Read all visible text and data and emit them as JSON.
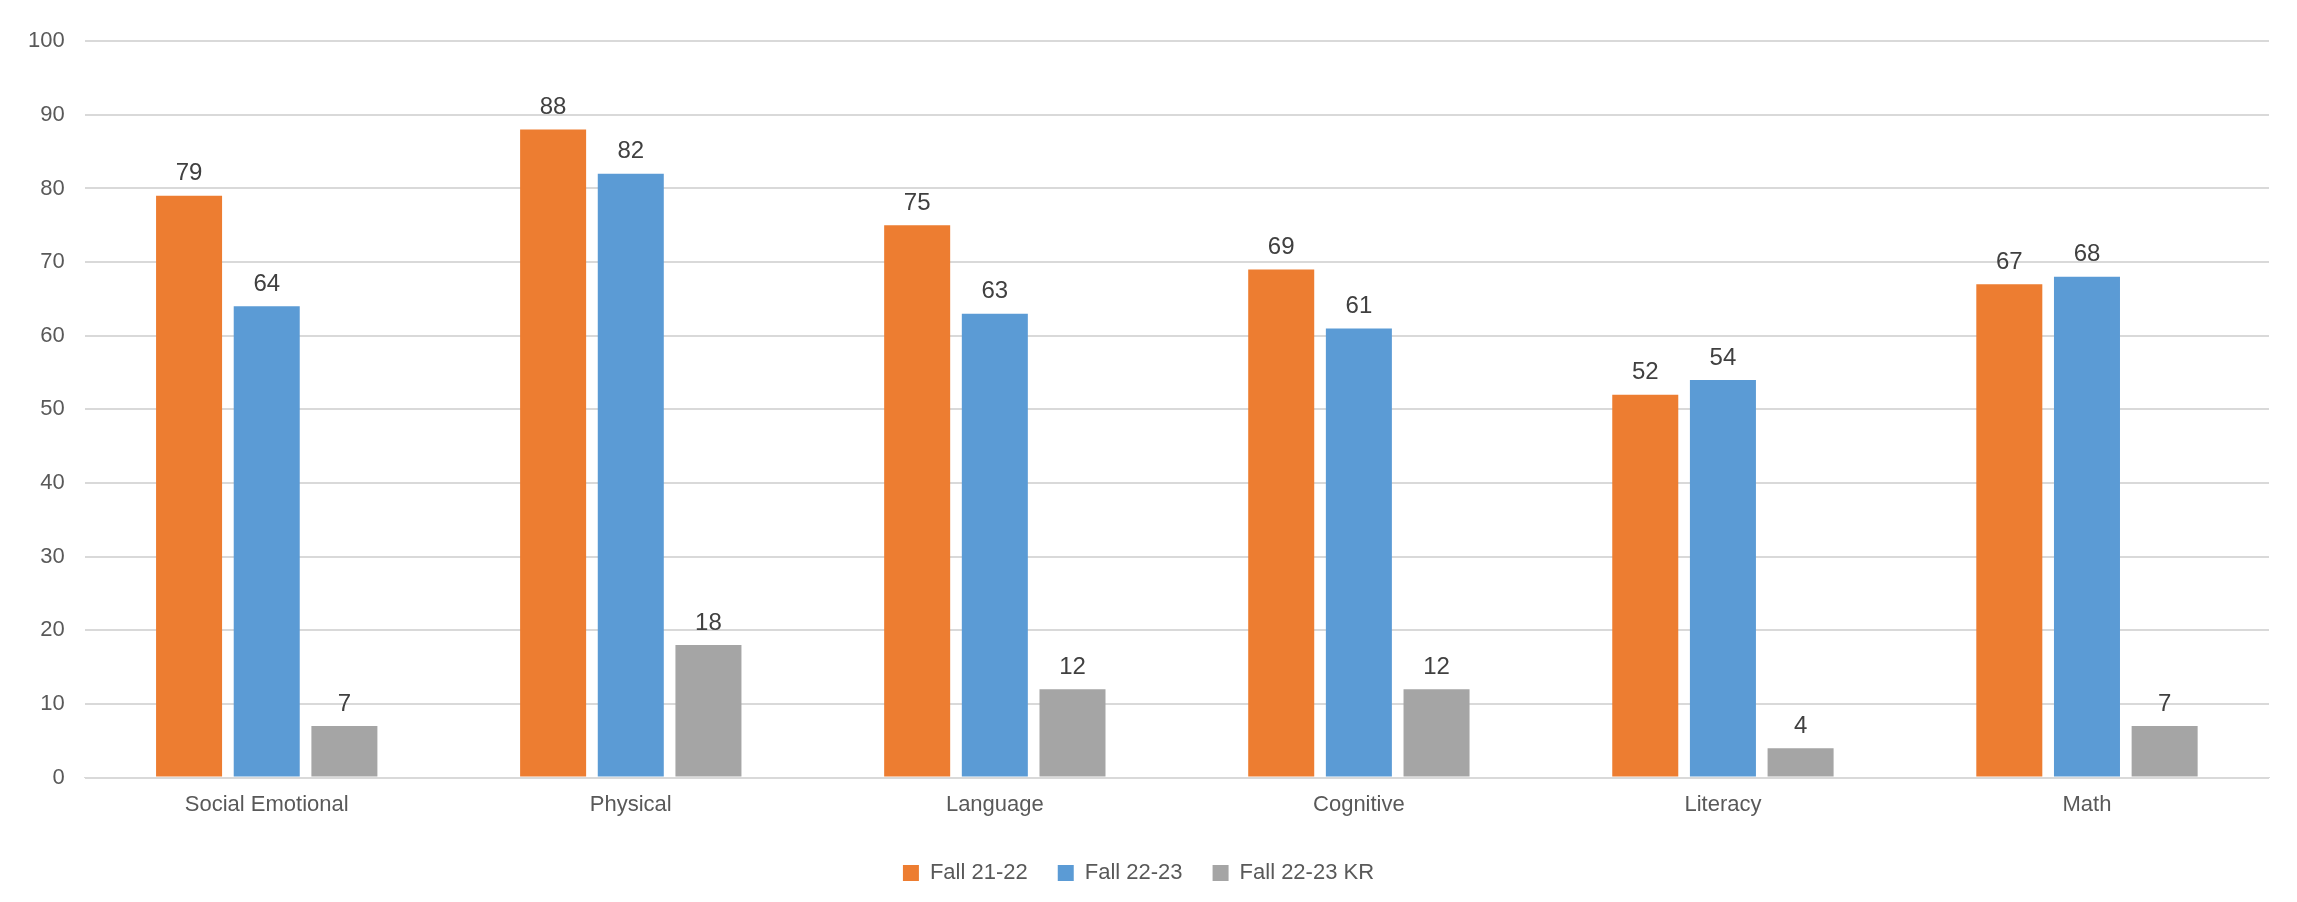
{
  "chart_data": {
    "type": "bar",
    "categories": [
      "Social Emotional",
      "Physical",
      "Language",
      "Cognitive",
      "Literacy",
      "Math"
    ],
    "series": [
      {
        "name": "Fall 21-22",
        "color": "#ed7d31",
        "values": [
          79,
          88,
          75,
          69,
          52,
          67
        ]
      },
      {
        "name": "Fall 22-23",
        "color": "#5b9bd5",
        "values": [
          64,
          82,
          63,
          61,
          54,
          68
        ]
      },
      {
        "name": "Fall 22-23 KR",
        "color": "#a5a5a5",
        "values": [
          7,
          18,
          12,
          12,
          4,
          7
        ]
      }
    ],
    "ylim": [
      0,
      100
    ],
    "yticks": [
      0,
      10,
      20,
      30,
      40,
      50,
      60,
      70,
      80,
      90,
      100
    ],
    "grid": "y",
    "legend": "bottom",
    "data_labels": true
  }
}
